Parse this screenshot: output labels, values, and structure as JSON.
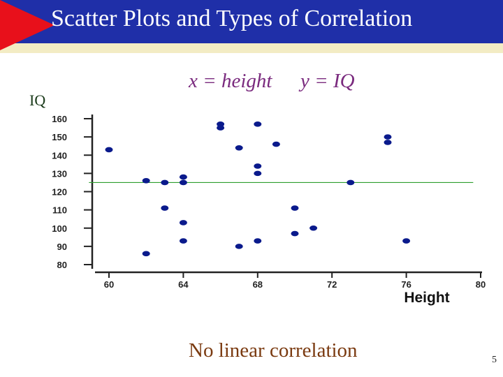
{
  "slide": {
    "title": "Scatter Plots and Types of Correlation",
    "x_def": "x = height",
    "y_def": "y = IQ",
    "iq_label": "IQ",
    "caption": "No linear correlation",
    "page_number": "5"
  },
  "colors": {
    "title_bar": "#1f2fa8",
    "title_stripe": "#f3ecc4",
    "accent_triangle": "#e8101b",
    "points": "#0a1a8c",
    "reference_line": "#2e9e2e"
  },
  "chart_data": {
    "type": "scatter",
    "xlabel": "Height",
    "ylabel": "",
    "xlim": [
      60,
      80
    ],
    "ylim": [
      80,
      160
    ],
    "x_ticks": [
      60,
      64,
      68,
      72,
      76,
      80
    ],
    "y_ticks": [
      80,
      90,
      100,
      110,
      120,
      130,
      140,
      150,
      160
    ],
    "grid": false,
    "reference_line": {
      "y": 125,
      "x_start": 59.9,
      "x_end": 79.6
    },
    "points": [
      {
        "x": 60,
        "y": 143
      },
      {
        "x": 62,
        "y": 126
      },
      {
        "x": 62,
        "y": 86
      },
      {
        "x": 63,
        "y": 125
      },
      {
        "x": 63,
        "y": 111
      },
      {
        "x": 64,
        "y": 128
      },
      {
        "x": 64,
        "y": 125
      },
      {
        "x": 64,
        "y": 103
      },
      {
        "x": 64,
        "y": 93
      },
      {
        "x": 66,
        "y": 157
      },
      {
        "x": 66,
        "y": 155
      },
      {
        "x": 67,
        "y": 144
      },
      {
        "x": 67,
        "y": 90
      },
      {
        "x": 68,
        "y": 157
      },
      {
        "x": 68,
        "y": 134
      },
      {
        "x": 68,
        "y": 130
      },
      {
        "x": 68,
        "y": 93
      },
      {
        "x": 69,
        "y": 146
      },
      {
        "x": 70,
        "y": 111
      },
      {
        "x": 70,
        "y": 97
      },
      {
        "x": 71,
        "y": 100
      },
      {
        "x": 73,
        "y": 125
      },
      {
        "x": 75,
        "y": 150
      },
      {
        "x": 75,
        "y": 147
      },
      {
        "x": 76,
        "y": 93
      }
    ]
  }
}
